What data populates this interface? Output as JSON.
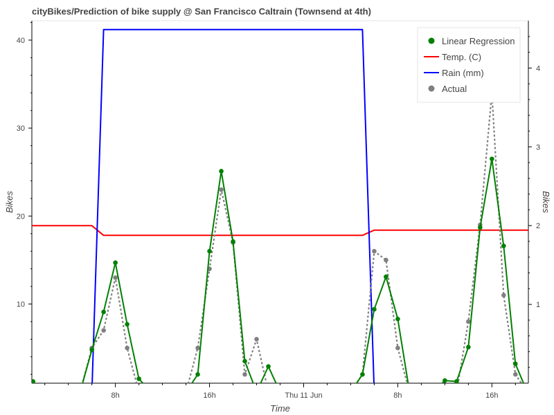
{
  "title": "cityBikes/Prediction of bike supply @ San Francisco Caltrain (Townsend at 4th)",
  "chart_data": {
    "type": "line",
    "title": "cityBikes/Prediction of bike supply @ San Francisco Caltrain (Townsend at 4th)",
    "xlabel": "Time",
    "ylabel": "Bikes",
    "ylabel_right": "Bikes",
    "x_ticks": [
      {
        "hour": 8,
        "label": "8h"
      },
      {
        "hour": 16,
        "label": "16h"
      },
      {
        "hour": 24,
        "label": "Thu 11 Jun"
      },
      {
        "hour": 32,
        "label": "8h"
      },
      {
        "hour": 40,
        "label": "16h"
      }
    ],
    "xlim": [
      0.9,
      43.1
    ],
    "ylim": [
      1,
      42.2
    ],
    "y_ticks": [
      10,
      20,
      30,
      40
    ],
    "y2lim": [
      0,
      4.6
    ],
    "y2_ticks": [
      1,
      2,
      3,
      4
    ],
    "legend": {
      "position": "top-right",
      "entries": [
        {
          "name": "Linear Regression",
          "color": "#008000",
          "marker": "circle"
        },
        {
          "name": "Temp. (C)",
          "color": "#ff0000",
          "marker": "line"
        },
        {
          "name": "Rain (mm)",
          "color": "#0000ff",
          "marker": "line"
        },
        {
          "name": "Actual",
          "color": "#808080",
          "marker": "circle"
        }
      ]
    },
    "series": [
      {
        "name": "Linear Regression",
        "color": "#008000",
        "axis": "left",
        "style": "solid",
        "markers": true,
        "x": [
          1,
          2,
          3,
          4,
          5,
          6,
          7,
          8,
          9,
          10,
          11,
          12,
          13,
          14,
          15,
          16,
          17,
          18,
          19,
          20,
          21,
          22,
          23,
          24,
          25,
          26,
          27,
          28,
          29,
          30,
          31,
          32,
          33,
          34,
          35,
          36,
          37,
          38,
          39,
          40,
          41,
          42,
          43
        ],
        "y": [
          1.2,
          0,
          0,
          0,
          0,
          4.8,
          9.1,
          14.7,
          7.7,
          1.5,
          0,
          0,
          0,
          0,
          2,
          16,
          25.1,
          17.1,
          3.5,
          0,
          2.9,
          0,
          0,
          0,
          0,
          0,
          0,
          0,
          2,
          9.4,
          13.1,
          8.3,
          0,
          0,
          0,
          1.3,
          1.2,
          5.1,
          18.7,
          26.5,
          16.6,
          3.2,
          0
        ]
      },
      {
        "name": "Actual",
        "color": "#808080",
        "axis": "left",
        "style": "dotted",
        "markers": true,
        "x": [
          1,
          2,
          3,
          4,
          5,
          6,
          7,
          8,
          9,
          10,
          11,
          12,
          13,
          14,
          15,
          16,
          17,
          18,
          19,
          20,
          21,
          22,
          23,
          24,
          25,
          26,
          27,
          28,
          29,
          30,
          31,
          32,
          33,
          34,
          35,
          36,
          37,
          38,
          39,
          40,
          41,
          42,
          43
        ],
        "y": [
          0,
          0,
          0,
          0,
          0,
          5,
          7,
          13,
          5,
          0,
          0,
          0,
          0,
          0,
          5,
          14,
          23,
          17,
          2,
          6,
          0,
          0,
          0,
          0,
          0,
          0,
          0,
          0,
          2,
          16,
          15,
          5,
          0,
          0,
          0,
          0,
          0,
          8,
          19,
          34,
          11,
          2,
          0
        ]
      },
      {
        "name": "Temp. (C)",
        "color": "#ff0000",
        "axis": "left",
        "style": "solid",
        "markers": false,
        "x": [
          0.9,
          6,
          7,
          29,
          30,
          43.1
        ],
        "y": [
          18.9,
          18.9,
          17.8,
          17.8,
          18.4,
          18.4
        ]
      },
      {
        "name": "Rain (mm)",
        "color": "#0000ff",
        "axis": "left",
        "style": "solid",
        "markers": false,
        "x": [
          6,
          7,
          29,
          30
        ],
        "y": [
          0,
          41.2,
          41.2,
          0
        ]
      }
    ]
  }
}
